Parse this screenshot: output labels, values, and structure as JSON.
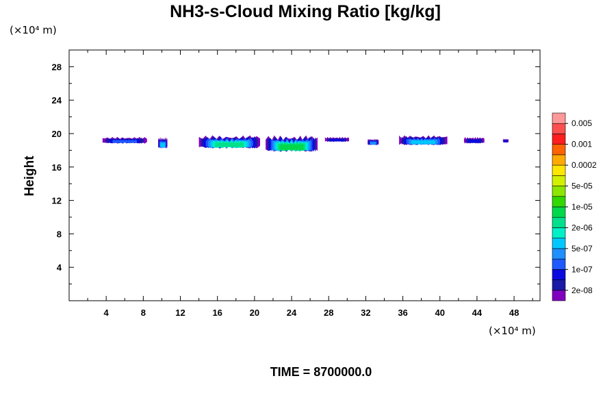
{
  "chart_data": {
    "type": "heatmap",
    "title": "NH3-s-Cloud Mixing Ratio [kg/kg]",
    "ylabel": "Height",
    "xlabel": "",
    "x_unit_label": "(×10⁴ m)",
    "y_unit_label": "(×10⁴ m)",
    "xlim": [
      0,
      50.8
    ],
    "ylim": [
      0,
      30
    ],
    "x_ticks": [
      4,
      8,
      12,
      16,
      20,
      24,
      28,
      32,
      36,
      40,
      44,
      48
    ],
    "y_ticks": [
      4,
      8,
      12,
      16,
      20,
      24,
      28
    ],
    "time_label": "TIME = 8700000.0",
    "colorbar": {
      "colors": [
        "#7f00bf",
        "#1a1aa6",
        "#0a0ae0",
        "#1e5aff",
        "#1e90ff",
        "#00c8ff",
        "#00f0c8",
        "#00e08c",
        "#00d84b",
        "#32d800",
        "#8ce600",
        "#d2f000",
        "#ffe600",
        "#ffaa00",
        "#ff6400",
        "#ff1e1e",
        "#ff5050",
        "#ff9999"
      ],
      "labels": [
        "2e-08",
        "1e-07",
        "5e-07",
        "2e-06",
        "1e-05",
        "5e-05",
        "0.0002",
        "0.001",
        "0.005"
      ]
    },
    "cloud_regions": [
      {
        "x": [
          3.6,
          8.4
        ],
        "y": [
          18.8,
          19.6
        ],
        "peak_level": 3
      },
      {
        "x": [
          9.6,
          10.6
        ],
        "y": [
          18.2,
          19.6
        ],
        "peak_level": 5
      },
      {
        "x": [
          14.0,
          20.6
        ],
        "y": [
          18.2,
          19.8
        ],
        "peak_level": 7
      },
      {
        "x": [
          21.2,
          26.8
        ],
        "y": [
          17.8,
          19.8
        ],
        "peak_level": 8
      },
      {
        "x": [
          27.6,
          30.2
        ],
        "y": [
          19.0,
          19.6
        ],
        "peak_level": 2
      },
      {
        "x": [
          32.2,
          33.4
        ],
        "y": [
          18.6,
          19.4
        ],
        "peak_level": 4
      },
      {
        "x": [
          35.6,
          40.8
        ],
        "y": [
          18.6,
          19.8
        ],
        "peak_level": 5
      },
      {
        "x": [
          42.6,
          44.8
        ],
        "y": [
          18.8,
          19.6
        ],
        "peak_level": 2
      },
      {
        "x": [
          46.8,
          47.4
        ],
        "y": [
          18.9,
          19.4
        ],
        "peak_level": 2
      }
    ]
  }
}
